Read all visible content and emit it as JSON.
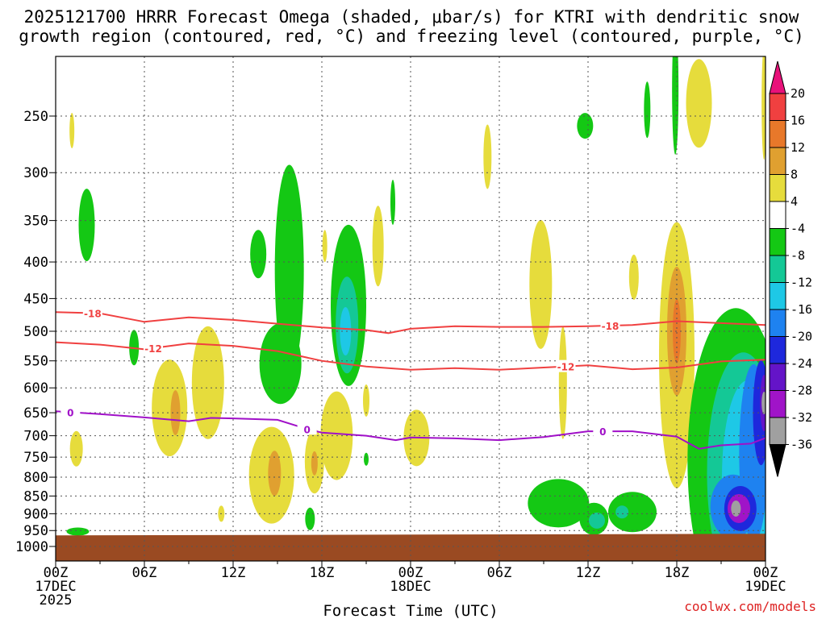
{
  "chart_data": {
    "type": "heatmap",
    "title_line1": "2025121700 HRRR Forecast Omega (shaded, μbar/s) for KTRI with dendritic snow",
    "title_line2": "growth region (contoured, red, °C) and freezing level (contoured, purple, °C)",
    "xlabel": "Forecast Time (UTC)",
    "credit": "coolwx.com/models",
    "x_range_hours": [
      0,
      48
    ],
    "x_ticks": [
      {
        "hour": 0,
        "line1": "00Z",
        "line2": "17DEC",
        "line3": "2025"
      },
      {
        "hour": 6,
        "line1": "06Z",
        "line2": "",
        "line3": ""
      },
      {
        "hour": 12,
        "line1": "12Z",
        "line2": "",
        "line3": ""
      },
      {
        "hour": 18,
        "line1": "18Z",
        "line2": "",
        "line3": ""
      },
      {
        "hour": 24,
        "line1": "00Z",
        "line2": "18DEC",
        "line3": ""
      },
      {
        "hour": 30,
        "line1": "06Z",
        "line2": "",
        "line3": ""
      },
      {
        "hour": 36,
        "line1": "12Z",
        "line2": "",
        "line3": ""
      },
      {
        "hour": 42,
        "line1": "18Z",
        "line2": "",
        "line3": ""
      },
      {
        "hour": 48,
        "line1": "00Z",
        "line2": "19DEC",
        "line3": ""
      }
    ],
    "y_ticks_hpa": [
      250,
      300,
      350,
      400,
      450,
      500,
      550,
      600,
      650,
      700,
      750,
      800,
      850,
      900,
      950,
      1000
    ],
    "colorbar": {
      "labels": [
        "20",
        "16",
        "12",
        "8",
        "4",
        "-4",
        "-8",
        "-12",
        "-16",
        "-20",
        "-24",
        "-28",
        "-32",
        "-36"
      ],
      "colors": [
        "#e8117a",
        "#f04040",
        "#e8782a",
        "#e0a030",
        "#e6dc3c",
        "#ffffff",
        "#14c814",
        "#14c896",
        "#1ec8e6",
        "#1e82f0",
        "#1e28dc",
        "#6414c8",
        "#a014c8",
        "#a0a0a0",
        "#000000"
      ]
    },
    "contours": [
      {
        "name": "dgz-top",
        "label": "-18",
        "color": "#f04040",
        "points": [
          [
            0,
            470
          ],
          [
            3,
            472
          ],
          [
            6,
            485
          ],
          [
            9,
            478
          ],
          [
            12,
            482
          ],
          [
            15,
            488
          ],
          [
            18,
            494
          ],
          [
            21,
            498
          ],
          [
            22.5,
            503
          ],
          [
            24,
            496
          ],
          [
            27,
            492
          ],
          [
            30,
            493
          ],
          [
            33,
            493
          ],
          [
            36,
            492
          ],
          [
            39,
            490
          ],
          [
            42,
            484
          ],
          [
            45,
            487
          ],
          [
            48,
            490
          ]
        ],
        "label_hours": [
          2.5,
          37.5
        ]
      },
      {
        "name": "dgz-bottom",
        "label": "-12",
        "color": "#f04040",
        "points": [
          [
            0,
            518
          ],
          [
            3,
            522
          ],
          [
            6,
            530
          ],
          [
            9,
            520
          ],
          [
            12,
            524
          ],
          [
            15,
            533
          ],
          [
            18,
            550
          ],
          [
            21,
            560
          ],
          [
            24,
            566
          ],
          [
            27,
            563
          ],
          [
            30,
            566
          ],
          [
            33,
            562
          ],
          [
            36,
            558
          ],
          [
            39,
            565
          ],
          [
            42,
            562
          ],
          [
            45,
            551
          ],
          [
            48,
            548
          ]
        ],
        "label_hours": [
          6.6,
          34.5
        ]
      },
      {
        "name": "freezing-level",
        "label": "0",
        "color": "#a010c8",
        "points": [
          [
            0,
            647
          ],
          [
            3,
            653
          ],
          [
            6,
            660
          ],
          [
            9,
            668
          ],
          [
            10.5,
            661
          ],
          [
            12,
            662
          ],
          [
            15,
            665
          ],
          [
            17,
            685
          ],
          [
            18,
            693
          ],
          [
            21,
            700
          ],
          [
            23,
            710
          ],
          [
            24,
            704
          ],
          [
            27,
            706
          ],
          [
            30,
            710
          ],
          [
            33,
            703
          ],
          [
            36,
            690
          ],
          [
            39,
            690
          ],
          [
            42,
            702
          ],
          [
            43.5,
            730
          ],
          [
            45,
            722
          ],
          [
            47,
            718
          ],
          [
            48,
            705
          ]
        ],
        "label_hours": [
          1.0,
          17.0,
          37.0
        ]
      }
    ],
    "shaded_regions": [
      {
        "name": "lowlevel-green-left",
        "color": "#14c814",
        "hour": 1.5,
        "p": 953,
        "rx": 14,
        "ry": 5
      },
      {
        "name": "green-cell-hr2",
        "color": "#14c814",
        "hour": 2.1,
        "p": 355,
        "rx": 10,
        "ry": 45
      },
      {
        "name": "yellow-cell-hr1",
        "color": "#e6dc3c",
        "hour": 1.1,
        "p": 262,
        "rx": 3,
        "ry": 22
      },
      {
        "name": "yellow-cell-hr1-low",
        "color": "#e6dc3c",
        "hour": 1.4,
        "p": 730,
        "rx": 8,
        "ry": 22
      },
      {
        "name": "green-cell-hr5",
        "color": "#14c814",
        "hour": 5.3,
        "p": 527,
        "rx": 6,
        "ry": 22
      },
      {
        "name": "yellow-cell-hr8",
        "color": "#e6dc3c",
        "hour": 7.7,
        "p": 640,
        "rx": 22,
        "ry": 60
      },
      {
        "name": "orange-core-hr8",
        "color": "#e0a030",
        "hour": 8.1,
        "p": 650,
        "rx": 6,
        "ry": 28
      },
      {
        "name": "yellow-cell-hr11",
        "color": "#e6dc3c",
        "hour": 10.3,
        "p": 590,
        "rx": 20,
        "ry": 70
      },
      {
        "name": "yellow-cell-hr11-low",
        "color": "#e6dc3c",
        "hour": 11.2,
        "p": 900,
        "rx": 4,
        "ry": 10
      },
      {
        "name": "green-cell-hr14",
        "color": "#14c814",
        "hour": 13.7,
        "p": 390,
        "rx": 10,
        "ry": 30
      },
      {
        "name": "green-tower-hr16",
        "color": "#14c814",
        "hour": 15.8,
        "p": 410,
        "rx": 18,
        "ry": 130
      },
      {
        "name": "green-cell-hr15-mid",
        "color": "#14c814",
        "hour": 15.2,
        "p": 555,
        "rx": 26,
        "ry": 50
      },
      {
        "name": "yellow-cell-hr15",
        "color": "#e6dc3c",
        "hour": 14.6,
        "p": 795,
        "rx": 28,
        "ry": 60
      },
      {
        "name": "orange-core-hr15",
        "color": "#e0a030",
        "hour": 14.8,
        "p": 790,
        "rx": 8,
        "ry": 28
      },
      {
        "name": "yellow-cell-hr17",
        "color": "#e6dc3c",
        "hour": 17.5,
        "p": 760,
        "rx": 12,
        "ry": 40
      },
      {
        "name": "orange-core-hr17",
        "color": "#e0a030",
        "hour": 17.5,
        "p": 765,
        "rx": 4,
        "ry": 15
      },
      {
        "name": "green-cell-hr18-low",
        "color": "#14c814",
        "hour": 17.2,
        "p": 915,
        "rx": 6,
        "ry": 14
      },
      {
        "name": "yellow-cell-hr18",
        "color": "#e6dc3c",
        "hour": 18.2,
        "p": 380,
        "rx": 3,
        "ry": 20
      },
      {
        "name": "yellow-cell-hr19",
        "color": "#e6dc3c",
        "hour": 19.0,
        "p": 700,
        "rx": 20,
        "ry": 55
      },
      {
        "name": "green-cell-hr20",
        "color": "#14c814",
        "hour": 19.8,
        "p": 460,
        "rx": 22,
        "ry": 100
      },
      {
        "name": "teal-core-hr20",
        "color": "#14c896",
        "hour": 19.7,
        "p": 490,
        "rx": 14,
        "ry": 60
      },
      {
        "name": "cyan-core-hr20",
        "color": "#1ec8e6",
        "hour": 19.6,
        "p": 500,
        "rx": 7,
        "ry": 30
      },
      {
        "name": "yellow-cell-hr21",
        "color": "#e6dc3c",
        "hour": 21.8,
        "p": 380,
        "rx": 7,
        "ry": 50
      },
      {
        "name": "yellow-cell-hr21-mid",
        "color": "#e6dc3c",
        "hour": 21.0,
        "p": 625,
        "rx": 4,
        "ry": 20
      },
      {
        "name": "green-cell-hr21-low",
        "color": "#14c814",
        "hour": 21.0,
        "p": 755,
        "rx": 3,
        "ry": 8
      },
      {
        "name": "green-cell-hr23",
        "color": "#14c814",
        "hour": 22.8,
        "p": 330,
        "rx": 3,
        "ry": 28
      },
      {
        "name": "yellow-cell-hr24",
        "color": "#e6dc3c",
        "hour": 24.4,
        "p": 705,
        "rx": 16,
        "ry": 35
      },
      {
        "name": "yellow-cell-hr29",
        "color": "#e6dc3c",
        "hour": 29.2,
        "p": 285,
        "rx": 5,
        "ry": 40
      },
      {
        "name": "yellow-cell-hr33",
        "color": "#e6dc3c",
        "hour": 32.8,
        "p": 430,
        "rx": 14,
        "ry": 80
      },
      {
        "name": "yellow-cell-hr34",
        "color": "#e6dc3c",
        "hour": 34.3,
        "p": 590,
        "rx": 5,
        "ry": 70
      },
      {
        "name": "green-cell-hr34",
        "color": "#14c814",
        "hour": 34.0,
        "p": 870,
        "rx": 38,
        "ry": 30
      },
      {
        "name": "green-cell-hr36-low",
        "color": "#14c814",
        "hour": 36.4,
        "p": 915,
        "rx": 18,
        "ry": 20
      },
      {
        "name": "teal-cell-hr37",
        "color": "#14c896",
        "hour": 36.6,
        "p": 920,
        "rx": 10,
        "ry": 10
      },
      {
        "name": "green-cell-hr36-top",
        "color": "#14c814",
        "hour": 35.8,
        "p": 258,
        "rx": 10,
        "ry": 16
      },
      {
        "name": "green-cell-hr39",
        "color": "#14c814",
        "hour": 39.0,
        "p": 895,
        "rx": 30,
        "ry": 25
      },
      {
        "name": "teal-cell-hr39",
        "color": "#14c896",
        "hour": 38.3,
        "p": 895,
        "rx": 8,
        "ry": 8
      },
      {
        "name": "yellow-cell-hr39",
        "color": "#e6dc3c",
        "hour": 39.1,
        "p": 420,
        "rx": 6,
        "ry": 28
      },
      {
        "name": "green-cell-hr39-top",
        "color": "#14c814",
        "hour": 40.0,
        "p": 245,
        "rx": 4,
        "ry": 35
      },
      {
        "name": "green-cell-hr42-top",
        "color": "#14c814",
        "hour": 41.9,
        "p": 230,
        "rx": 4,
        "ry": 80
      },
      {
        "name": "yellow-cell-hr44-top",
        "color": "#e6dc3c",
        "hour": 43.5,
        "p": 240,
        "rx": 16,
        "ry": 55
      },
      {
        "name": "yellow-tower-hr42",
        "color": "#e6dc3c",
        "hour": 42.0,
        "p": 540,
        "rx": 22,
        "ry": 165
      },
      {
        "name": "orange-tower-hr42",
        "color": "#e0a030",
        "hour": 42.0,
        "p": 500,
        "rx": 12,
        "ry": 80
      },
      {
        "name": "redorange-core-hr42",
        "color": "#e8782a",
        "hour": 42.0,
        "p": 500,
        "rx": 5,
        "ry": 40
      },
      {
        "name": "green-plume-hr45",
        "color": "#14c814",
        "hour": 46.0,
        "p": 760,
        "rx": 60,
        "ry": 190
      },
      {
        "name": "teal-plume-hr46",
        "color": "#14c896",
        "hour": 46.5,
        "p": 790,
        "rx": 45,
        "ry": 150
      },
      {
        "name": "cyan-plume-hr46",
        "color": "#1ec8e6",
        "hour": 46.8,
        "p": 800,
        "rx": 32,
        "ry": 120
      },
      {
        "name": "blue-plume-hr47",
        "color": "#1e82f0",
        "hour": 47.2,
        "p": 740,
        "rx": 18,
        "ry": 110
      },
      {
        "name": "darkblue-core-hr48",
        "color": "#1e28dc",
        "hour": 47.7,
        "p": 650,
        "rx": 10,
        "ry": 65
      },
      {
        "name": "purple-core-hr48",
        "color": "#6414c8",
        "hour": 47.9,
        "p": 630,
        "rx": 5,
        "ry": 35
      },
      {
        "name": "blue-lowlevel-hr46",
        "color": "#1e82f0",
        "hour": 45.8,
        "p": 880,
        "rx": 28,
        "ry": 40
      },
      {
        "name": "darkblue-lowlevel-hr46",
        "color": "#1e28dc",
        "hour": 46.3,
        "p": 885,
        "rx": 20,
        "ry": 28
      },
      {
        "name": "violet-lowlevel-hr46",
        "color": "#a014c8",
        "hour": 46.2,
        "p": 885,
        "rx": 14,
        "ry": 18
      },
      {
        "name": "gray-core-hr46",
        "color": "#a0a0a0",
        "hour": 46.0,
        "p": 885,
        "rx": 6,
        "ry": 10
      },
      {
        "name": "gray-core-hr48",
        "color": "#a0a0a0",
        "hour": 47.9,
        "p": 630,
        "rx": 3,
        "ry": 14
      },
      {
        "name": "yellow-edge-hr48",
        "color": "#e6dc3c",
        "hour": 47.9,
        "p": 240,
        "rx": 3,
        "ry": 70
      }
    ],
    "ground": {
      "name": "terrain",
      "color": "#9a4a22",
      "top_hpa": [
        [
          0,
          965
        ],
        [
          48,
          960
        ]
      ]
    }
  }
}
